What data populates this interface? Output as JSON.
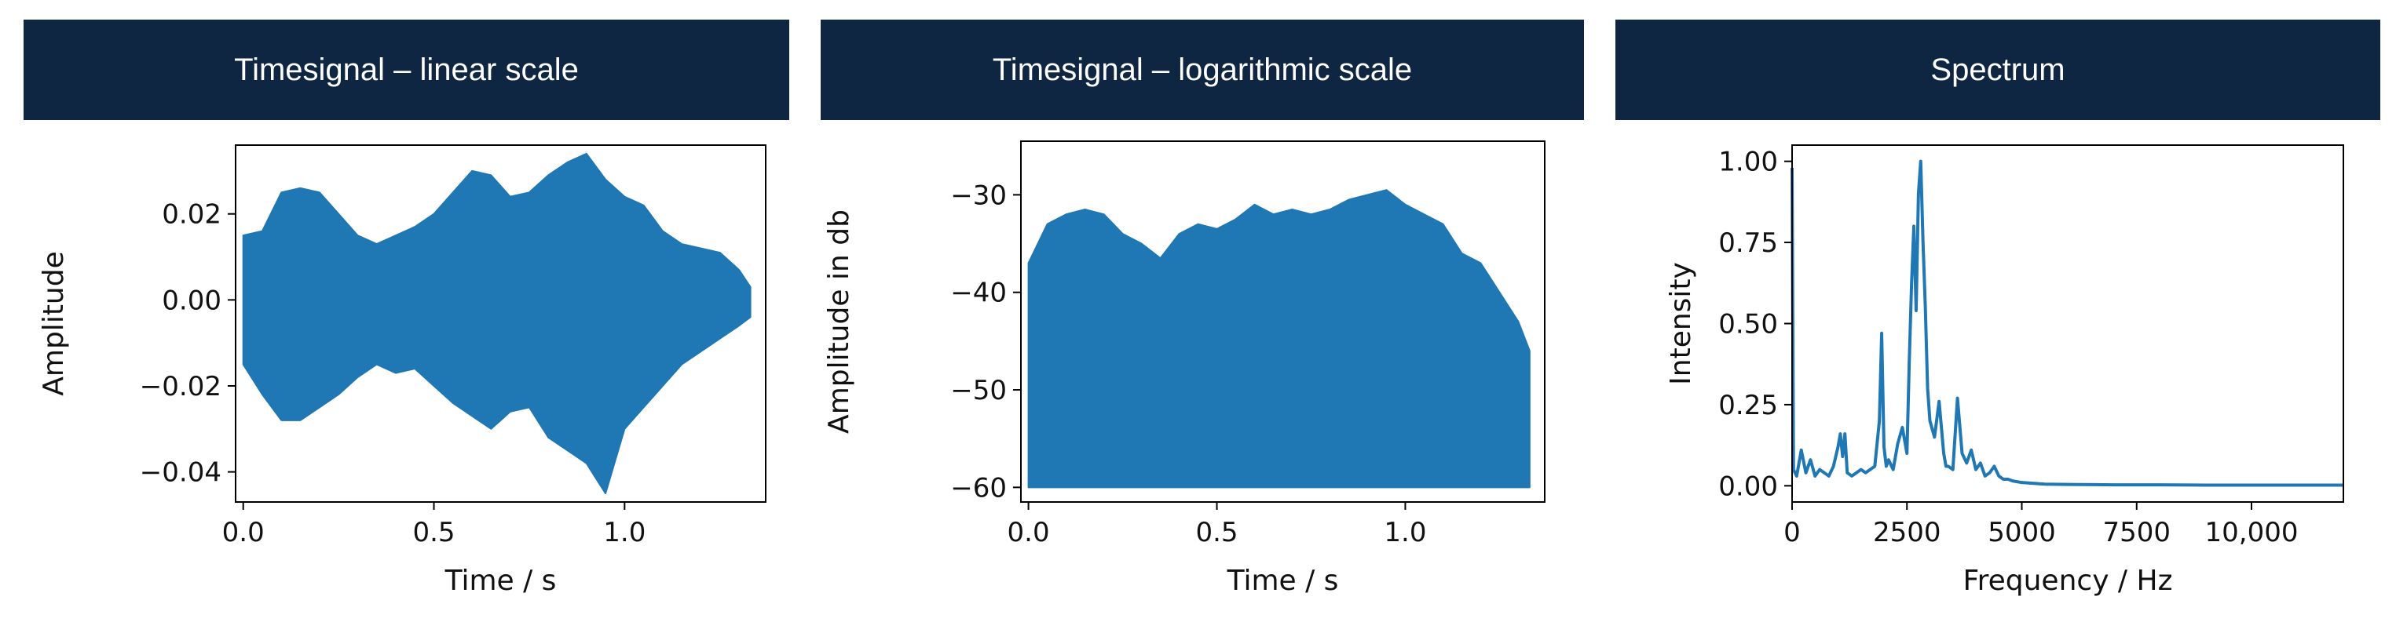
{
  "colors": {
    "header_bg": "#0f2642",
    "header_text": "#ffffff",
    "series": "#1f77b4"
  },
  "panels": [
    {
      "header": "Timesignal – linear scale"
    },
    {
      "header": "Timesignal – logarithmic scale"
    },
    {
      "header": "Spectrum"
    }
  ],
  "chart_data": [
    {
      "type": "area",
      "title": "",
      "xlabel": "Time / s",
      "ylabel": "Amplitude",
      "xlim": [
        -0.02,
        1.37
      ],
      "ylim": [
        -0.047,
        0.036
      ],
      "xticks": [
        0.0,
        0.5,
        1.0
      ],
      "xtick_labels": [
        "0.0",
        "0.5",
        "1.0"
      ],
      "yticks": [
        -0.04,
        -0.02,
        0.0,
        0.02
      ],
      "ytick_labels": [
        "−0.04",
        "−0.02",
        "0.00",
        "0.02"
      ],
      "grid": false,
      "x": [
        0.0,
        0.05,
        0.1,
        0.15,
        0.2,
        0.25,
        0.3,
        0.35,
        0.4,
        0.45,
        0.5,
        0.55,
        0.6,
        0.65,
        0.7,
        0.75,
        0.8,
        0.85,
        0.9,
        0.95,
        1.0,
        1.05,
        1.1,
        1.15,
        1.2,
        1.25,
        1.3,
        1.33
      ],
      "y_max": [
        0.015,
        0.016,
        0.025,
        0.026,
        0.025,
        0.02,
        0.015,
        0.013,
        0.015,
        0.017,
        0.02,
        0.025,
        0.03,
        0.029,
        0.024,
        0.025,
        0.029,
        0.032,
        0.034,
        0.028,
        0.024,
        0.022,
        0.016,
        0.013,
        0.012,
        0.011,
        0.007,
        0.003
      ],
      "y_min": [
        -0.015,
        -0.022,
        -0.028,
        -0.028,
        -0.025,
        -0.022,
        -0.018,
        -0.015,
        -0.017,
        -0.016,
        -0.02,
        -0.024,
        -0.027,
        -0.03,
        -0.026,
        -0.025,
        -0.032,
        -0.035,
        -0.038,
        -0.045,
        -0.03,
        -0.025,
        -0.02,
        -0.015,
        -0.012,
        -0.009,
        -0.006,
        -0.004
      ]
    },
    {
      "type": "area",
      "title": "",
      "xlabel": "Time / s",
      "ylabel": "Amplitude in db",
      "xlim": [
        -0.02,
        1.37
      ],
      "ylim": [
        -61.5,
        -24.5
      ],
      "xticks": [
        0.0,
        0.5,
        1.0
      ],
      "xtick_labels": [
        "0.0",
        "0.5",
        "1.0"
      ],
      "yticks": [
        -60,
        -50,
        -40,
        -30
      ],
      "ytick_labels": [
        "−60",
        "−50",
        "−40",
        "−30"
      ],
      "grid": false,
      "baseline": -60,
      "x": [
        0.0,
        0.05,
        0.1,
        0.15,
        0.2,
        0.25,
        0.3,
        0.35,
        0.4,
        0.45,
        0.5,
        0.55,
        0.6,
        0.65,
        0.7,
        0.75,
        0.8,
        0.85,
        0.9,
        0.95,
        1.0,
        1.05,
        1.1,
        1.15,
        1.2,
        1.25,
        1.3,
        1.33
      ],
      "y_max": [
        -37,
        -33,
        -32,
        -31.5,
        -32,
        -34,
        -35,
        -36.5,
        -34,
        -33,
        -33.5,
        -32.5,
        -31,
        -32,
        -31.5,
        -32,
        -31.5,
        -30.5,
        -30,
        -29.5,
        -31,
        -32,
        -33,
        -36,
        -37,
        -40,
        -43,
        -46
      ]
    },
    {
      "type": "line",
      "title": "",
      "xlabel": "Frequency / Hz",
      "ylabel": "Intensity",
      "xlim": [
        0,
        12000
      ],
      "ylim": [
        -0.05,
        1.05
      ],
      "xticks": [
        0,
        2500,
        5000,
        7500,
        10000
      ],
      "xtick_labels": [
        "0",
        "2500",
        "5000",
        "7500",
        "10,000"
      ],
      "yticks": [
        0.0,
        0.25,
        0.5,
        0.75,
        1.0
      ],
      "ytick_labels": [
        "0.00",
        "0.25",
        "0.50",
        "0.75",
        "1.00"
      ],
      "grid": false,
      "x": [
        0,
        30,
        100,
        200,
        300,
        400,
        500,
        600,
        700,
        800,
        900,
        1000,
        1050,
        1100,
        1150,
        1200,
        1300,
        1400,
        1500,
        1600,
        1700,
        1800,
        1900,
        1950,
        2000,
        2050,
        2100,
        2200,
        2300,
        2400,
        2500,
        2550,
        2600,
        2650,
        2700,
        2750,
        2800,
        2850,
        2900,
        2950,
        3000,
        3100,
        3200,
        3300,
        3350,
        3400,
        3500,
        3600,
        3700,
        3800,
        3900,
        4000,
        4100,
        4200,
        4300,
        4400,
        4500,
        4600,
        4700,
        4800,
        5000,
        5500,
        6000,
        7000,
        8000,
        9000,
        10000,
        11000,
        12000
      ],
      "y": [
        0.98,
        0.05,
        0.03,
        0.11,
        0.04,
        0.08,
        0.03,
        0.05,
        0.04,
        0.03,
        0.06,
        0.12,
        0.16,
        0.09,
        0.16,
        0.04,
        0.03,
        0.04,
        0.05,
        0.04,
        0.05,
        0.06,
        0.2,
        0.47,
        0.12,
        0.06,
        0.08,
        0.05,
        0.13,
        0.18,
        0.1,
        0.38,
        0.62,
        0.8,
        0.54,
        0.9,
        1.0,
        0.75,
        0.55,
        0.3,
        0.2,
        0.15,
        0.26,
        0.1,
        0.06,
        0.06,
        0.05,
        0.27,
        0.1,
        0.07,
        0.11,
        0.05,
        0.07,
        0.03,
        0.04,
        0.06,
        0.03,
        0.02,
        0.02,
        0.015,
        0.01,
        0.005,
        0.004,
        0.003,
        0.003,
        0.002,
        0.002,
        0.002,
        0.002
      ]
    }
  ]
}
